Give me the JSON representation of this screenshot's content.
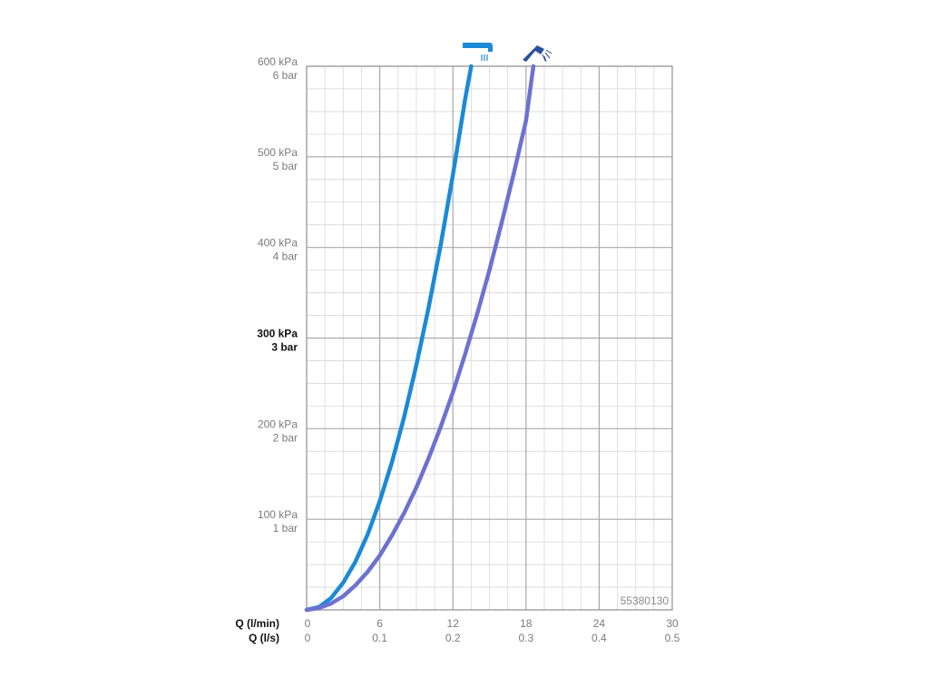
{
  "chart_data": {
    "type": "line",
    "code": "55380130",
    "x_axes": [
      {
        "title": "Q (l/min)",
        "ticks": [
          "0",
          "6",
          "12",
          "18",
          "24",
          "30"
        ],
        "range": [
          0,
          30
        ]
      },
      {
        "title": "Q (l/s)",
        "ticks": [
          "0",
          "0.1",
          "0.2",
          "0.3",
          "0.4",
          "0.5"
        ],
        "range": [
          0,
          0.5
        ]
      }
    ],
    "y_axis": {
      "range": [
        0,
        600
      ],
      "unit": "kPa",
      "ticks": [
        {
          "kpa": "600 kPa",
          "bar": "6 bar",
          "value": 600,
          "bold": false
        },
        {
          "kpa": "500 kPa",
          "bar": "5 bar",
          "value": 500,
          "bold": false
        },
        {
          "kpa": "400 kPa",
          "bar": "4 bar",
          "value": 400,
          "bold": false
        },
        {
          "kpa": "300 kPa",
          "bar": "3 bar",
          "value": 300,
          "bold": true
        },
        {
          "kpa": "200 kPa",
          "bar": "2 bar",
          "value": 200,
          "bold": false
        },
        {
          "kpa": "100 kPa",
          "bar": "1 bar",
          "value": 100,
          "bold": false
        }
      ]
    },
    "grid": true,
    "series": [
      {
        "icon": "shower-head-rain-icon",
        "color": "#1a8ad6",
        "x": [
          0,
          1,
          2,
          3,
          4,
          5,
          6,
          7,
          8,
          9,
          10,
          11,
          12,
          13,
          13.5
        ],
        "y": [
          0,
          3,
          13,
          30,
          53,
          83,
          120,
          163,
          213,
          270,
          333,
          403,
          480,
          563,
          600
        ]
      },
      {
        "icon": "shower-head-jet-icon",
        "color": "#6c72d1",
        "x": [
          0,
          1,
          2,
          3,
          4,
          5,
          6,
          7,
          8,
          9,
          10,
          11,
          12,
          13,
          14,
          15,
          16,
          17,
          18,
          18.6
        ],
        "y": [
          0,
          2,
          7,
          15,
          27,
          42,
          60,
          82,
          107,
          135,
          167,
          202,
          240,
          282,
          327,
          375,
          427,
          482,
          540,
          600
        ]
      }
    ]
  }
}
